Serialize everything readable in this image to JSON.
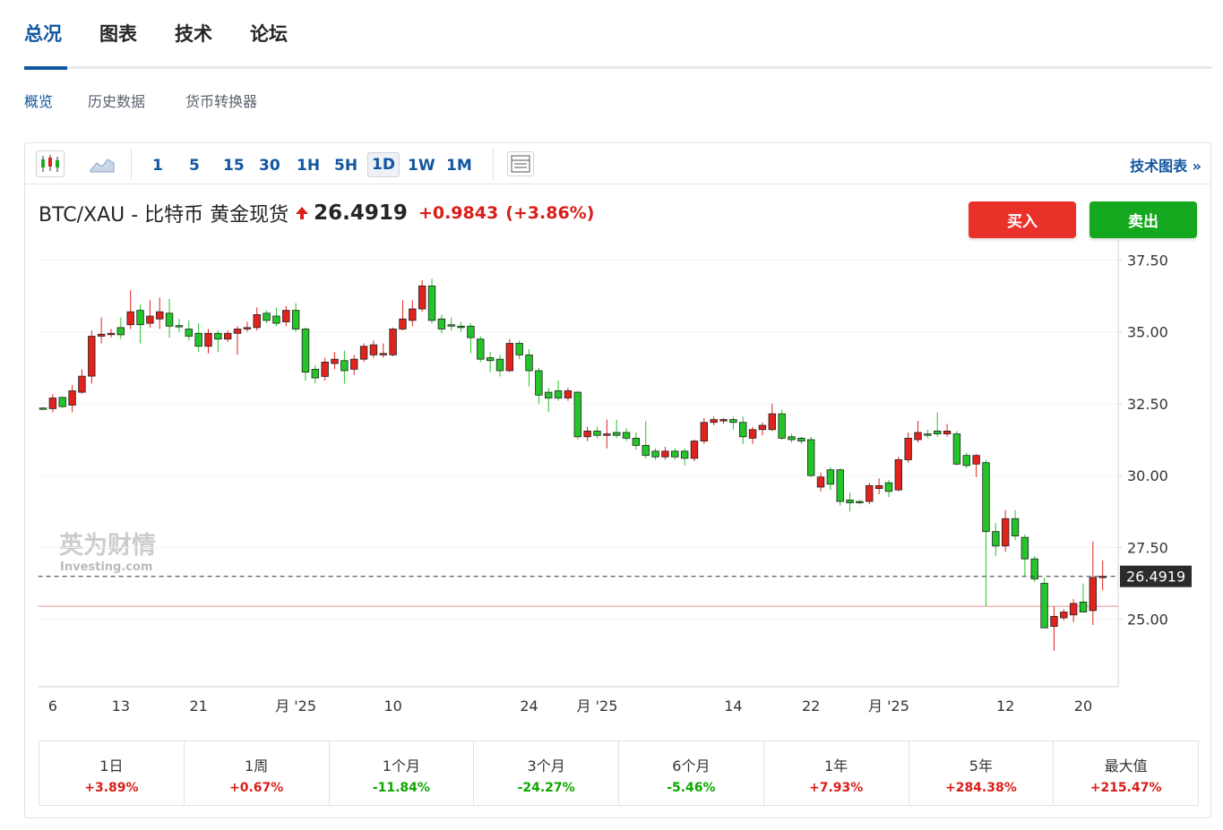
{
  "tabs": [
    "总况",
    "图表",
    "技术",
    "论坛"
  ],
  "subtabs": [
    "概览",
    "历史数据",
    "货币转换器"
  ],
  "toolbar": {
    "intervals": [
      "1",
      "5",
      "15",
      "30",
      "1H",
      "5H",
      "1D",
      "1W",
      "1M"
    ],
    "link": "技术图表 »"
  },
  "header": {
    "title": "BTC/XAU - 比特币 黄金现货",
    "price": "26.4919",
    "change": "+0.9843",
    "change_pct": "(+3.86%)"
  },
  "buttons": {
    "buy": "买入",
    "sell": "卖出"
  },
  "watermark": [
    "英为财情",
    "Investing.com"
  ],
  "chart_data": {
    "type": "candlestick",
    "up_color": "#e0231d",
    "down_color": "#24c42a",
    "grid": true,
    "ylim": [
      22.65,
      38.2
    ],
    "yticks": [
      {
        "value": 25,
        "label": "25.00"
      },
      {
        "value": 27.5,
        "label": "27.50"
      },
      {
        "value": 30,
        "label": "30.00"
      },
      {
        "value": 32.5,
        "label": "32.50"
      },
      {
        "value": 35,
        "label": "35.00"
      },
      {
        "value": 37.5,
        "label": "37.50"
      }
    ],
    "price_line": {
      "value": 26.4919,
      "label": "26.4919"
    },
    "ref_line": 25.45,
    "categories": [
      null,
      "6",
      null,
      null,
      null,
      null,
      null,
      null,
      "13",
      null,
      null,
      null,
      null,
      null,
      null,
      null,
      "21",
      null,
      null,
      null,
      null,
      null,
      null,
      null,
      null,
      null,
      "月 '25",
      null,
      null,
      null,
      null,
      null,
      null,
      null,
      null,
      null,
      "10",
      null,
      null,
      null,
      null,
      null,
      null,
      null,
      null,
      null,
      null,
      null,
      null,
      null,
      "24",
      null,
      null,
      null,
      null,
      null,
      null,
      "月 '25",
      null,
      null,
      null,
      null,
      null,
      null,
      null,
      null,
      null,
      null,
      null,
      null,
      null,
      "14",
      null,
      null,
      null,
      null,
      null,
      null,
      null,
      "22",
      null,
      null,
      null,
      null,
      null,
      null,
      null,
      "月 '25",
      null,
      null,
      null,
      null,
      null,
      null,
      null,
      null,
      null,
      null,
      null,
      "12",
      null,
      null,
      null,
      null,
      null,
      null,
      null,
      "20",
      null,
      null
    ],
    "open": [
      32.35,
      32.33,
      32.72,
      32.45,
      32.9,
      33.46,
      34.85,
      34.92,
      35.15,
      35.25,
      35.75,
      35.3,
      35.45,
      35.65,
      35.22,
      35.1,
      34.95,
      34.5,
      34.95,
      34.75,
      34.95,
      35.1,
      35.15,
      35.65,
      35.55,
      35.35,
      35.75,
      35.1,
      33.7,
      33.45,
      33.9,
      34.0,
      33.7,
      34.05,
      34.2,
      34.2,
      34.2,
      35.1,
      35.4,
      35.8,
      36.6,
      35.45,
      35.25,
      35.2,
      35.2,
      34.75,
      34.1,
      34.05,
      33.65,
      34.6,
      34.2,
      33.65,
      32.9,
      32.95,
      32.7,
      32.9,
      31.35,
      31.55,
      31.4,
      31.5,
      31.5,
      31.3,
      31.05,
      30.85,
      30.65,
      30.85,
      30.85,
      30.6,
      31.2,
      31.85,
      31.9,
      31.95,
      31.85,
      31.3,
      31.6,
      31.6,
      32.15,
      31.35,
      31.3,
      31.25,
      29.6,
      30.2,
      30.2,
      29.15,
      29.1,
      29.1,
      29.55,
      29.75,
      29.5,
      30.55,
      31.25,
      31.45,
      31.55,
      31.45,
      31.45,
      30.7,
      30.4,
      30.45,
      28.05,
      27.55,
      28.5,
      27.85,
      27.1,
      26.25,
      24.75,
      25.05,
      25.15,
      25.6,
      25.3,
      26.45
    ],
    "high": [
      32.38,
      32.84,
      32.75,
      33.15,
      33.7,
      35.05,
      35.5,
      35.1,
      35.5,
      36.45,
      35.95,
      36.1,
      36.2,
      36.15,
      35.45,
      35.4,
      35.3,
      35.1,
      35.05,
      35.05,
      35.2,
      35.35,
      35.85,
      35.75,
      35.85,
      35.9,
      36.0,
      35.15,
      33.85,
      34.1,
      34.3,
      34.35,
      34.2,
      34.6,
      34.7,
      34.6,
      35.15,
      36.1,
      36.1,
      36.8,
      36.85,
      35.6,
      35.5,
      35.35,
      35.3,
      34.85,
      34.3,
      34.2,
      34.75,
      34.7,
      34.4,
      33.75,
      33.05,
      33.3,
      33.05,
      32.95,
      31.7,
      31.7,
      31.95,
      31.95,
      31.65,
      31.5,
      31.9,
      30.95,
      31.0,
      30.95,
      30.95,
      31.25,
      32.0,
      32.05,
      32.0,
      32.05,
      32.05,
      31.7,
      31.85,
      32.5,
      32.3,
      31.45,
      31.35,
      31.35,
      30.1,
      30.3,
      30.25,
      29.4,
      29.15,
      29.75,
      29.9,
      29.85,
      30.65,
      31.5,
      31.9,
      31.6,
      32.2,
      31.8,
      31.55,
      30.8,
      30.75,
      30.55,
      28.35,
      28.8,
      28.8,
      27.95,
      27.2,
      26.45,
      25.45,
      25.35,
      25.7,
      26.25,
      27.7,
      27.05
    ],
    "low": [
      32.3,
      32.2,
      32.35,
      32.2,
      32.85,
      33.2,
      34.6,
      34.8,
      34.75,
      35.1,
      34.6,
      35.15,
      35.1,
      34.8,
      35.0,
      34.7,
      34.3,
      34.25,
      34.3,
      34.65,
      34.2,
      35.0,
      35.05,
      35.3,
      35.2,
      35.2,
      35.0,
      33.3,
      33.2,
      33.3,
      33.7,
      33.2,
      33.5,
      33.95,
      34.1,
      34.1,
      34.15,
      35.05,
      35.2,
      35.7,
      35.3,
      34.95,
      35.05,
      35.0,
      34.25,
      33.95,
      33.6,
      33.45,
      33.6,
      34.05,
      33.1,
      32.5,
      32.2,
      32.6,
      32.6,
      31.25,
      31.2,
      31.3,
      30.95,
      31.3,
      31.2,
      30.9,
      30.6,
      30.55,
      30.55,
      30.55,
      30.35,
      30.5,
      31.1,
      31.75,
      31.8,
      31.6,
      31.1,
      31.1,
      31.4,
      31.55,
      31.25,
      31.15,
      31.1,
      29.95,
      29.45,
      29.5,
      28.95,
      28.75,
      29.0,
      29.0,
      29.35,
      29.25,
      29.45,
      30.45,
      31.15,
      31.3,
      31.35,
      31.35,
      30.35,
      30.25,
      29.95,
      25.45,
      27.2,
      27.35,
      27.75,
      26.5,
      26.3,
      24.7,
      23.9,
      24.95,
      24.9,
      25.25,
      24.8,
      26.0
    ],
    "close": [
      32.33,
      32.7,
      32.4,
      32.95,
      33.46,
      34.85,
      34.92,
      34.95,
      34.9,
      35.7,
      35.25,
      35.55,
      35.7,
      35.2,
      35.2,
      34.85,
      34.5,
      34.95,
      34.75,
      34.95,
      35.1,
      35.15,
      35.6,
      35.4,
      35.3,
      35.75,
      35.1,
      33.6,
      33.4,
      33.95,
      34.05,
      33.65,
      34.05,
      34.5,
      34.55,
      34.25,
      35.1,
      35.45,
      35.8,
      36.6,
      35.4,
      35.1,
      35.2,
      35.15,
      34.8,
      34.05,
      34.0,
      33.65,
      34.6,
      34.2,
      33.65,
      32.8,
      32.7,
      32.7,
      32.95,
      31.35,
      31.55,
      31.4,
      31.45,
      31.4,
      31.3,
      31.05,
      30.7,
      30.65,
      30.85,
      30.65,
      30.6,
      31.2,
      31.85,
      31.95,
      31.95,
      31.85,
      31.35,
      31.6,
      31.75,
      32.15,
      31.3,
      31.25,
      31.2,
      30.0,
      29.95,
      29.7,
      29.1,
      29.05,
      29.05,
      29.65,
      29.65,
      29.45,
      30.55,
      31.3,
      31.5,
      31.4,
      31.45,
      31.55,
      30.4,
      30.35,
      30.7,
      28.05,
      27.55,
      28.5,
      27.9,
      27.1,
      26.4,
      24.7,
      25.1,
      25.25,
      25.55,
      25.25,
      26.45,
      26.4919
    ]
  },
  "performance": [
    {
      "label": "1日",
      "value": "+3.89%"
    },
    {
      "label": "1周",
      "value": "+0.67%"
    },
    {
      "label": "1个月",
      "value": "-11.84%"
    },
    {
      "label": "3个月",
      "value": "-24.27%"
    },
    {
      "label": "6个月",
      "value": "-5.46%"
    },
    {
      "label": "1年",
      "value": "+7.93%"
    },
    {
      "label": "5年",
      "value": "+284.38%"
    },
    {
      "label": "最大值",
      "value": "+215.47%"
    }
  ]
}
